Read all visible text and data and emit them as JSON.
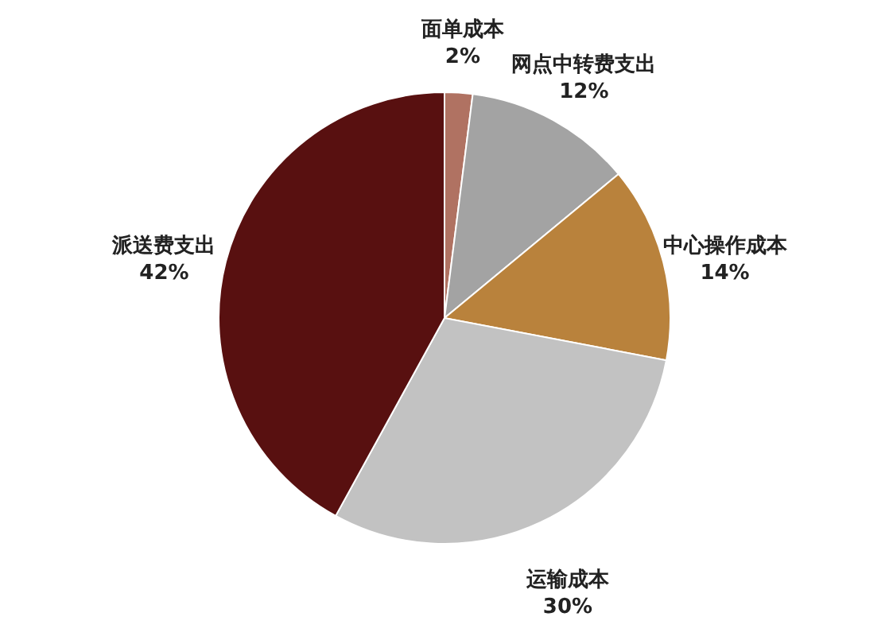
{
  "chart_data": {
    "type": "pie",
    "categories": [
      "面单成本",
      "网点中转费支出",
      "中心操作成本",
      "运输成本",
      "派送费支出"
    ],
    "values": [
      2,
      12,
      14,
      30,
      42
    ],
    "colors": [
      "#b07262",
      "#a3a3a3",
      "#b9823c",
      "#c2c2c2",
      "#581010"
    ],
    "value_labels": [
      "2%",
      "12%",
      "14%",
      "30%",
      "42%"
    ]
  }
}
